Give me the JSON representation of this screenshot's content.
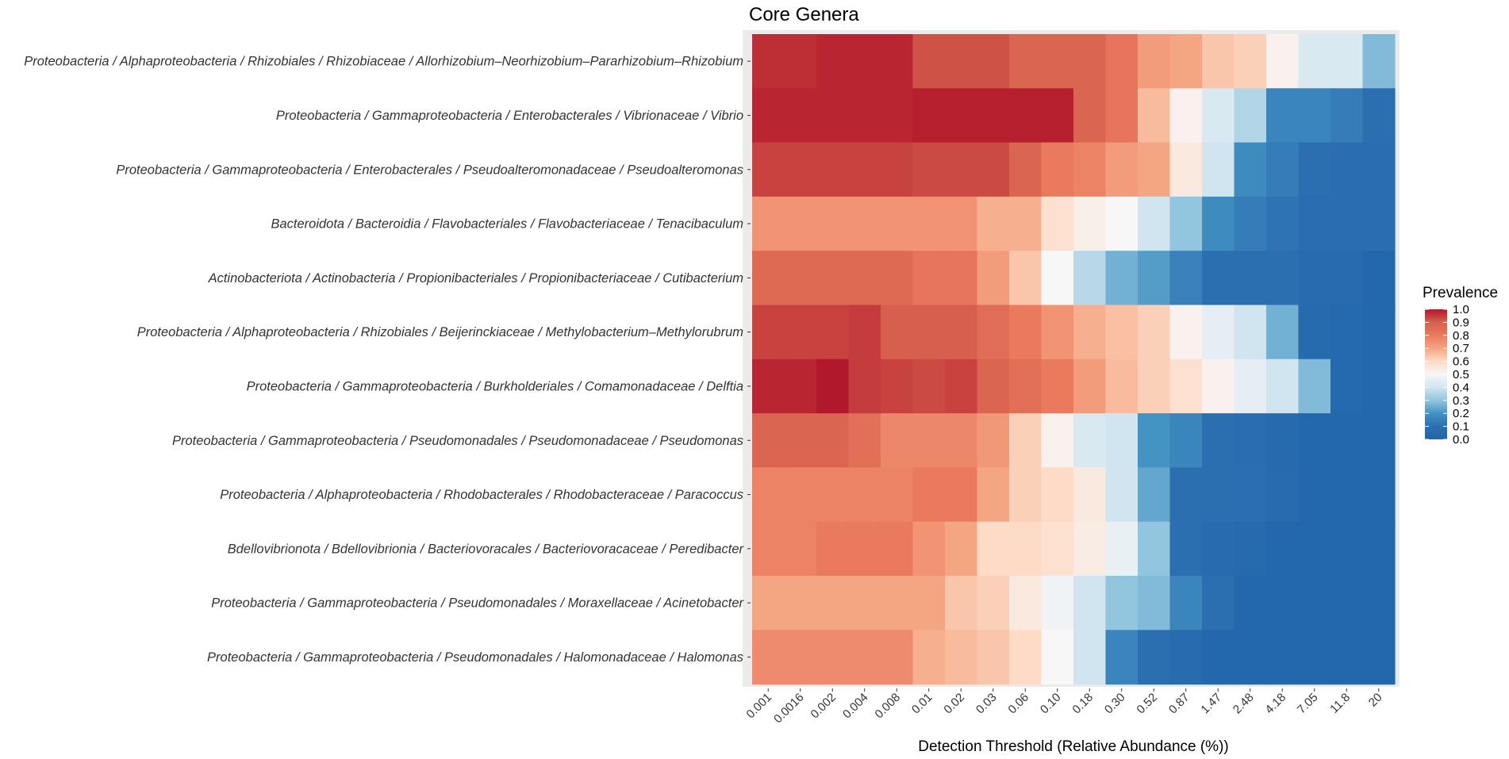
{
  "chart_data": {
    "type": "heatmap",
    "title": "Core Genera",
    "xlabel": "Detection Threshold (Relative Abundance (%))",
    "ylabel": "",
    "x": [
      "0.001",
      "0.0016",
      "0.002",
      "0.004",
      "0.008",
      "0.01",
      "0.02",
      "0.03",
      "0.06",
      "0.10",
      "0.18",
      "0.30",
      "0.52",
      "0.87",
      "1.47",
      "2.48",
      "4.18",
      "7.05",
      "11.8",
      "20"
    ],
    "y": [
      "Proteobacteria / Alphaproteobacteria / Rhizobiales / Rhizobiaceae / Allorhizobium–Neorhizobium–Pararhizobium–Rhizobium",
      "Proteobacteria / Gammaproteobacteria / Enterobacterales / Vibrionaceae / Vibrio",
      "Proteobacteria / Gammaproteobacteria / Enterobacterales / Pseudoalteromonadaceae / Pseudoalteromonas",
      "Bacteroidota / Bacteroidia / Flavobacteriales / Flavobacteriaceae / Tenacibaculum",
      "Actinobacteriota / Actinobacteria / Propionibacteriales / Propionibacteriaceae / Cutibacterium",
      "Proteobacteria / Alphaproteobacteria / Rhizobiales / Beijerinckiaceae / Methylobacterium–Methylorubrum",
      "Proteobacteria / Gammaproteobacteria / Burkholderiales / Comamonadaceae / Delftia",
      "Proteobacteria / Gammaproteobacteria / Pseudomonadales / Pseudomonadaceae / Pseudomonas",
      "Proteobacteria / Alphaproteobacteria / Rhodobacterales / Rhodobacteraceae / Paracoccus",
      "Bdellovibrionota / Bdellovibrionia / Bacteriovoracales / Bacteriovoracaceae / Peredibacter",
      "Proteobacteria / Gammaproteobacteria / Pseudomonadales / Moraxellaceae / Acinetobacter",
      "Proteobacteria / Gammaproteobacteria / Pseudomonadales / Halomonadaceae / Halomonas"
    ],
    "values": [
      [
        0.97,
        0.97,
        0.98,
        0.98,
        0.98,
        0.92,
        0.92,
        0.92,
        0.88,
        0.88,
        0.88,
        0.82,
        0.72,
        0.7,
        0.64,
        0.62,
        0.52,
        0.42,
        0.42,
        0.28
      ],
      [
        0.98,
        0.98,
        0.98,
        0.98,
        0.98,
        0.99,
        0.99,
        0.99,
        0.99,
        0.99,
        0.88,
        0.82,
        0.66,
        0.52,
        0.42,
        0.35,
        0.16,
        0.16,
        0.14,
        0.1
      ],
      [
        0.94,
        0.94,
        0.94,
        0.94,
        0.94,
        0.93,
        0.93,
        0.93,
        0.88,
        0.8,
        0.78,
        0.72,
        0.7,
        0.55,
        0.4,
        0.18,
        0.14,
        0.1,
        0.08,
        0.08
      ],
      [
        0.74,
        0.74,
        0.74,
        0.74,
        0.74,
        0.74,
        0.74,
        0.68,
        0.68,
        0.58,
        0.53,
        0.5,
        0.4,
        0.3,
        0.18,
        0.14,
        0.11,
        0.08,
        0.08,
        0.08
      ],
      [
        0.86,
        0.86,
        0.86,
        0.86,
        0.86,
        0.82,
        0.82,
        0.72,
        0.64,
        0.5,
        0.36,
        0.26,
        0.22,
        0.15,
        0.1,
        0.1,
        0.1,
        0.06,
        0.06,
        0.02
      ],
      [
        0.94,
        0.94,
        0.94,
        0.95,
        0.9,
        0.9,
        0.9,
        0.85,
        0.8,
        0.74,
        0.68,
        0.65,
        0.62,
        0.52,
        0.45,
        0.4,
        0.26,
        0.05,
        0.04,
        0.02
      ],
      [
        0.98,
        0.98,
        1.0,
        0.95,
        0.94,
        0.93,
        0.94,
        0.88,
        0.84,
        0.8,
        0.72,
        0.66,
        0.62,
        0.58,
        0.52,
        0.45,
        0.4,
        0.28,
        0.04,
        0.02
      ],
      [
        0.88,
        0.88,
        0.88,
        0.84,
        0.77,
        0.77,
        0.77,
        0.73,
        0.62,
        0.52,
        0.42,
        0.4,
        0.2,
        0.16,
        0.1,
        0.08,
        0.05,
        0.02,
        0.02,
        0.02
      ],
      [
        0.78,
        0.78,
        0.78,
        0.78,
        0.78,
        0.8,
        0.8,
        0.7,
        0.62,
        0.6,
        0.55,
        0.4,
        0.24,
        0.1,
        0.1,
        0.09,
        0.06,
        0.02,
        0.02,
        0.02
      ],
      [
        0.78,
        0.78,
        0.8,
        0.8,
        0.8,
        0.74,
        0.7,
        0.6,
        0.6,
        0.58,
        0.54,
        0.46,
        0.3,
        0.1,
        0.06,
        0.05,
        0.02,
        0.02,
        0.02,
        0.02
      ],
      [
        0.7,
        0.7,
        0.7,
        0.7,
        0.7,
        0.7,
        0.64,
        0.62,
        0.55,
        0.48,
        0.4,
        0.3,
        0.28,
        0.16,
        0.1,
        0.02,
        0.02,
        0.02,
        0.02,
        0.02
      ],
      [
        0.76,
        0.76,
        0.76,
        0.76,
        0.76,
        0.68,
        0.66,
        0.64,
        0.6,
        0.5,
        0.4,
        0.16,
        0.1,
        0.06,
        0.02,
        0.02,
        0.02,
        0.02,
        0.02,
        0.02
      ]
    ],
    "legend": {
      "title": "Prevalence",
      "ticks": [
        "1.0",
        "0.9",
        "0.8",
        "0.7",
        "0.6",
        "0.5",
        "0.4",
        "0.3",
        "0.2",
        "0.1",
        "0.0"
      ],
      "range": [
        0,
        1
      ],
      "placement": "right"
    },
    "colors": {
      "low": "#2166ac",
      "mid": "#f7f7f7",
      "high": "#b2182b",
      "panel_background": "#ebebeb",
      "grid": "#ffffff"
    }
  }
}
